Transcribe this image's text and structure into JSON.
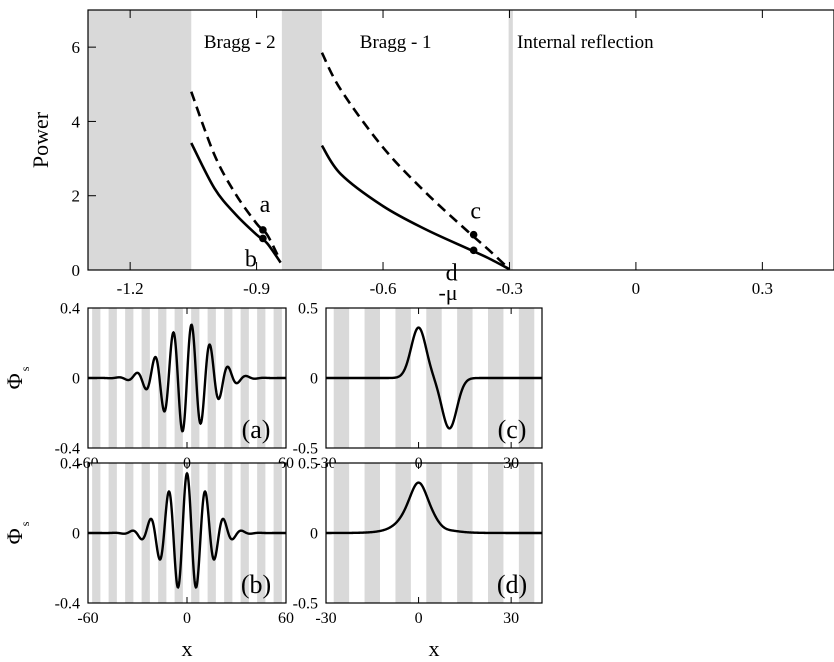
{
  "chart_data": [
    {
      "panel": "main",
      "type": "line",
      "xlabel": "-μ",
      "ylabel": "Power",
      "xlim": [
        -1.3,
        0.47
      ],
      "ylim": [
        0,
        7
      ],
      "xticks": [
        -1.2,
        -0.9,
        -0.6,
        -0.3,
        0,
        0.3
      ],
      "xtick_labels": [
        "-1.2",
        "-0.9",
        "-0.6",
        "-0.3",
        "0",
        "0.3"
      ],
      "yticks": [
        0,
        2,
        4,
        6
      ],
      "ytick_labels": [
        "0",
        "2",
        "4",
        "6"
      ],
      "grid": false,
      "gap_bands": [
        {
          "x0": -1.3,
          "x1": -1.055
        },
        {
          "x0": -0.84,
          "x1": -0.745
        },
        {
          "x0": -0.302,
          "x1": -0.292
        }
      ],
      "region_labels": [
        "Bragg - 2",
        "Bragg - 1",
        "Internal reflection"
      ],
      "series": [
        {
          "style": "dashed",
          "x": [
            -1.055,
            -1.0,
            -0.95,
            -0.9,
            -0.875,
            -0.845
          ],
          "y": [
            4.8,
            3.1,
            2.05,
            1.25,
            0.95,
            0.28
          ]
        },
        {
          "style": "solid",
          "x": [
            -1.055,
            -1.0,
            -0.95,
            -0.9,
            -0.875,
            -0.843
          ],
          "y": [
            3.42,
            2.2,
            1.5,
            0.95,
            0.72,
            0.2
          ]
        },
        {
          "style": "dashed",
          "x": [
            -0.745,
            -0.7,
            -0.6,
            -0.5,
            -0.4,
            -0.35,
            -0.3
          ],
          "y": [
            5.85,
            4.85,
            3.3,
            2.1,
            1.05,
            0.55,
            0.02
          ]
        },
        {
          "style": "solid",
          "x": [
            -0.745,
            -0.7,
            -0.6,
            -0.5,
            -0.4,
            -0.35,
            -0.3
          ],
          "y": [
            3.35,
            2.58,
            1.72,
            1.1,
            0.58,
            0.32,
            0.02
          ]
        }
      ],
      "points": [
        {
          "label": "a",
          "x": -0.885,
          "y": 1.08
        },
        {
          "label": "b",
          "x": -0.885,
          "y": 0.85
        },
        {
          "label": "c",
          "x": -0.385,
          "y": 0.95
        },
        {
          "label": "d",
          "x": -0.385,
          "y": 0.53
        }
      ]
    },
    {
      "panel": "a",
      "label": "(a)",
      "type": "line",
      "ylabel": "Φs",
      "xlim": [
        -60,
        60
      ],
      "ylim": [
        -0.4,
        0.4
      ],
      "xticks": [
        -60,
        0,
        60
      ],
      "xtick_labels": [
        "-60",
        "0",
        "60"
      ],
      "yticks": [
        -0.4,
        0,
        0.4
      ],
      "ytick_labels": [
        "-0.4",
        "0",
        "0.4"
      ],
      "stripe_period": 10,
      "function": {
        "kind": "odd_wavepacket",
        "amplitude": 0.31,
        "freq": 0.565,
        "width": 14
      }
    },
    {
      "panel": "c",
      "label": "(c)",
      "type": "line",
      "xlim": [
        -30,
        40
      ],
      "ylim": [
        -0.5,
        0.5
      ],
      "xticks": [
        -30,
        0,
        30
      ],
      "xtick_labels": [
        "-30",
        "0",
        "30"
      ],
      "yticks": [
        -0.5,
        0,
        0.5
      ],
      "ytick_labels": [
        "-0.5",
        "0",
        "0.5"
      ],
      "stripe_period": 10,
      "function": {
        "kind": "twin_peak",
        "amplitude": 0.36,
        "offset": 10,
        "width": 2.4
      }
    },
    {
      "panel": "b",
      "label": "(b)",
      "type": "line",
      "xlabel": "x",
      "ylabel": "Φs",
      "xlim": [
        -60,
        60
      ],
      "ylim": [
        -0.4,
        0.4
      ],
      "xticks": [
        -60,
        0,
        60
      ],
      "xtick_labels": [
        "-60",
        "0",
        "60"
      ],
      "yticks": [
        -0.4,
        0,
        0.4
      ],
      "ytick_labels": [
        "-0.4",
        "0",
        "0.4"
      ],
      "stripe_period": 10,
      "function": {
        "kind": "even_wavepacket",
        "amplitude": 0.34,
        "freq": 0.565,
        "width": 13
      }
    },
    {
      "panel": "d",
      "label": "(d)",
      "type": "line",
      "xlabel": "x",
      "xlim": [
        -30,
        40
      ],
      "ylim": [
        -0.5,
        0.5
      ],
      "xticks": [
        -30,
        0,
        30
      ],
      "xtick_labels": [
        "-30",
        "0",
        "30"
      ],
      "yticks": [
        -0.5,
        0,
        0.5
      ],
      "ytick_labels": [
        "-0.5",
        "0",
        "0.5"
      ],
      "stripe_period": 10,
      "function": {
        "kind": "single_peak",
        "amplitude": 0.36,
        "width": 3.2
      }
    }
  ]
}
